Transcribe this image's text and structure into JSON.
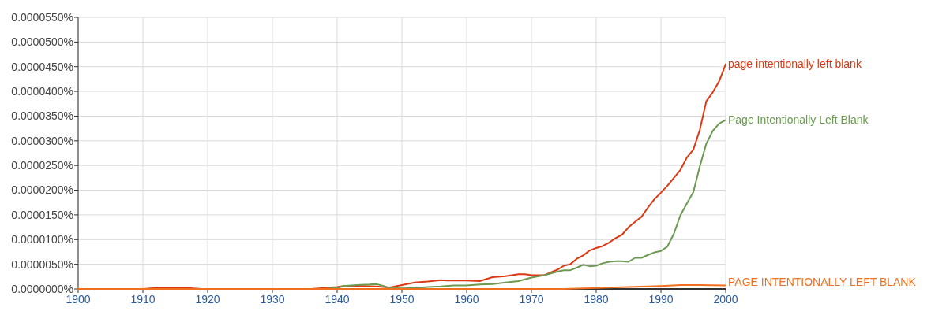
{
  "chart_data": {
    "type": "line",
    "xlim": [
      1900,
      2000
    ],
    "xticks": [
      1900,
      1910,
      1920,
      1930,
      1940,
      1950,
      1960,
      1970,
      1980,
      1990,
      2000
    ],
    "ylim": [
      0,
      5.5e-05
    ],
    "yticks": [
      {
        "value": 0,
        "label": "0.0000000%"
      },
      {
        "value": 5e-06,
        "label": "0.0000050%"
      },
      {
        "value": 1e-05,
        "label": "0.0000100%"
      },
      {
        "value": 1.5e-05,
        "label": "0.0000150%"
      },
      {
        "value": 2e-05,
        "label": "0.0000200%"
      },
      {
        "value": 2.5e-05,
        "label": "0.0000250%"
      },
      {
        "value": 3e-05,
        "label": "0.0000300%"
      },
      {
        "value": 3.5e-05,
        "label": "0.0000350%"
      },
      {
        "value": 4e-05,
        "label": "0.0000400%"
      },
      {
        "value": 4.5e-05,
        "label": "0.0000450%"
      },
      {
        "value": 5e-05,
        "label": "0.0000500%"
      },
      {
        "value": 5.5e-05,
        "label": "0.0000550%"
      }
    ],
    "grid": true,
    "legend": false,
    "series": [
      {
        "name": "page intentionally left blank",
        "color": "#dc3912",
        "x": [
          1900,
          1910,
          1912,
          1917,
          1919,
          1936,
          1938,
          1940,
          1941,
          1944,
          1946,
          1948,
          1950,
          1952,
          1954,
          1956,
          1957,
          1960,
          1962,
          1964,
          1966,
          1968,
          1969,
          1970,
          1972,
          1974,
          1975,
          1976,
          1977,
          1978,
          1979,
          1980,
          1981,
          1982,
          1983,
          1984,
          1985,
          1986,
          1987,
          1988,
          1989,
          1990,
          1991,
          1992,
          1993,
          1994,
          1995,
          1996,
          1997,
          1998,
          1999,
          2000
        ],
        "values": [
          0,
          0,
          2e-07,
          2e-07,
          0,
          0,
          2e-07,
          4e-07,
          6e-07,
          6e-07,
          5e-07,
          3e-07,
          8e-07,
          1.3e-06,
          1.5e-06,
          1.8e-06,
          1.7e-06,
          1.7e-06,
          1.6e-06,
          2.4e-06,
          2.6e-06,
          3e-06,
          3e-06,
          2.8e-06,
          2.8e-06,
          3.9e-06,
          4.7e-06,
          5e-06,
          6.1e-06,
          6.8e-06,
          7.8e-06,
          8.3e-06,
          8.7e-06,
          9.4e-06,
          1.03e-05,
          1.1e-05,
          1.25e-05,
          1.36e-05,
          1.46e-05,
          1.65e-05,
          1.82e-05,
          1.95e-05,
          2.09e-05,
          2.25e-05,
          2.41e-05,
          2.66e-05,
          2.82e-05,
          3.22e-05,
          3.8e-05,
          3.98e-05,
          4.21e-05,
          4.55e-05
        ]
      },
      {
        "name": "Page Intentionally Left Blank",
        "color": "#6b9a50",
        "x": [
          1900,
          1938,
          1940,
          1941,
          1943,
          1945,
          1946,
          1947,
          1948,
          1950,
          1952,
          1954,
          1956,
          1958,
          1960,
          1962,
          1964,
          1966,
          1968,
          1970,
          1972,
          1974,
          1975,
          1976,
          1977,
          1978,
          1979,
          1980,
          1981,
          1982,
          1983,
          1984,
          1985,
          1986,
          1987,
          1988,
          1989,
          1990,
          1991,
          1992,
          1993,
          1994,
          1995,
          1996,
          1997,
          1998,
          1999,
          2000
        ],
        "values": [
          0,
          0,
          2e-07,
          6e-07,
          8e-07,
          9e-07,
          1e-06,
          7e-07,
          2e-07,
          1e-07,
          2e-07,
          4e-07,
          5e-07,
          7e-07,
          7e-07,
          9e-07,
          1e-06,
          1.3e-06,
          1.6e-06,
          2.3e-06,
          2.8e-06,
          3.5e-06,
          3.8e-06,
          3.8e-06,
          4.3e-06,
          4.9e-06,
          4.6e-06,
          4.7e-06,
          5.2e-06,
          5.5e-06,
          5.6e-06,
          5.6e-06,
          5.5e-06,
          6.3e-06,
          6.3e-06,
          6.9e-06,
          7.4e-06,
          7.7e-06,
          8.6e-06,
          1.12e-05,
          1.49e-05,
          1.73e-05,
          1.96e-05,
          2.48e-05,
          2.94e-05,
          3.2e-05,
          3.35e-05,
          3.42e-05
        ]
      },
      {
        "name": "PAGE INTENTIONALLY LEFT BLANK",
        "color": "#f07020",
        "x": [
          1900,
          1975,
          1980,
          1985,
          1990,
          1993,
          1996,
          2000
        ],
        "values": [
          0,
          0,
          2e-07,
          4e-07,
          6e-07,
          8e-07,
          8e-07,
          7e-07
        ]
      }
    ]
  }
}
